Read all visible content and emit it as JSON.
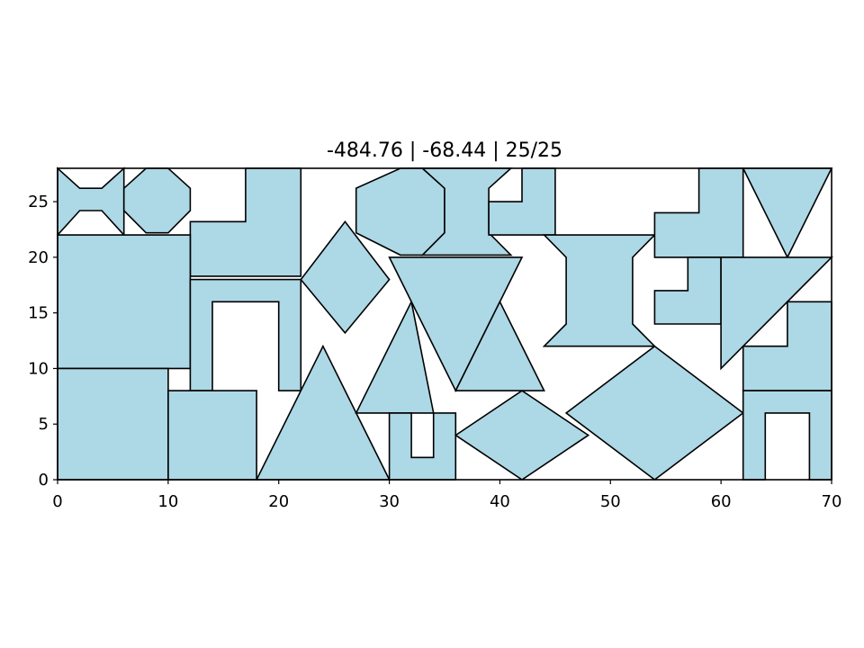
{
  "chart_data": {
    "type": "polygon-packing",
    "title": "-484.76 | -68.44 | 25/25",
    "xlim": [
      0,
      70
    ],
    "ylim": [
      0,
      28
    ],
    "x_ticks": [
      0,
      10,
      20,
      30,
      40,
      50,
      60,
      70
    ],
    "y_ticks": [
      0,
      5,
      10,
      15,
      20,
      25
    ],
    "grid": false,
    "legend": "none",
    "colors": {
      "fill": "#add8e6",
      "edge": "#000000"
    },
    "polygons": [
      {
        "name": "bowtie",
        "points": [
          [
            0,
            22
          ],
          [
            0,
            28
          ],
          [
            2,
            26.2
          ],
          [
            4,
            26.2
          ],
          [
            6,
            28
          ],
          [
            6,
            22
          ],
          [
            4,
            24.2
          ],
          [
            2,
            24.2
          ]
        ]
      },
      {
        "name": "octagon-small",
        "points": [
          [
            8,
            28
          ],
          [
            10,
            28
          ],
          [
            12,
            26.2
          ],
          [
            12,
            24.2
          ],
          [
            10,
            22.2
          ],
          [
            8,
            22.2
          ],
          [
            6,
            24.2
          ],
          [
            6,
            26.2
          ]
        ]
      },
      {
        "name": "l-shape-top",
        "points": [
          [
            17,
            28
          ],
          [
            22,
            28
          ],
          [
            22,
            18.3
          ],
          [
            12,
            18.3
          ],
          [
            12,
            23.2
          ],
          [
            17,
            23.2
          ]
        ]
      },
      {
        "name": "square-left",
        "points": [
          [
            0,
            10
          ],
          [
            12,
            10
          ],
          [
            12,
            22
          ],
          [
            0,
            22
          ]
        ]
      },
      {
        "name": "arch",
        "points": [
          [
            12,
            8
          ],
          [
            14,
            8
          ],
          [
            14,
            16
          ],
          [
            20,
            16
          ],
          [
            20,
            8
          ],
          [
            22,
            8
          ],
          [
            22,
            18
          ],
          [
            12,
            18
          ]
        ]
      },
      {
        "name": "rect-bottom-left",
        "points": [
          [
            0,
            0
          ],
          [
            10,
            0
          ],
          [
            10,
            10
          ],
          [
            0,
            10
          ]
        ]
      },
      {
        "name": "rect-bottom",
        "points": [
          [
            10,
            0
          ],
          [
            18,
            0
          ],
          [
            18,
            8
          ],
          [
            10,
            8
          ]
        ]
      },
      {
        "name": "triangle-bottom",
        "points": [
          [
            18,
            0
          ],
          [
            30,
            0
          ],
          [
            24,
            12
          ]
        ]
      },
      {
        "name": "diamond-small",
        "points": [
          [
            22,
            18
          ],
          [
            26,
            23.2
          ],
          [
            30,
            18
          ],
          [
            26,
            13.2
          ]
        ]
      },
      {
        "name": "octagon-large",
        "points": [
          [
            31,
            28
          ],
          [
            33,
            28
          ],
          [
            35,
            26.2
          ],
          [
            35,
            22.2
          ],
          [
            33,
            20.2
          ],
          [
            31,
            20.2
          ],
          [
            27,
            22.2
          ],
          [
            27,
            26.2
          ]
        ]
      },
      {
        "name": "hourglass-top",
        "points": [
          [
            33,
            28
          ],
          [
            41,
            28
          ],
          [
            39,
            26.2
          ],
          [
            39,
            22.2
          ],
          [
            41,
            20.2
          ],
          [
            33,
            20.2
          ],
          [
            35,
            22.2
          ],
          [
            35,
            26.2
          ]
        ]
      },
      {
        "name": "l-shape-mid-top",
        "points": [
          [
            42,
            28
          ],
          [
            45,
            28
          ],
          [
            45,
            22
          ],
          [
            39,
            22
          ],
          [
            39,
            25
          ],
          [
            42,
            25
          ]
        ]
      },
      {
        "name": "triangle-mid-left",
        "points": [
          [
            27,
            6
          ],
          [
            34,
            6
          ],
          [
            32,
            16
          ]
        ]
      },
      {
        "name": "triangle-inverted",
        "points": [
          [
            30,
            20
          ],
          [
            42,
            20
          ],
          [
            36,
            8
          ]
        ]
      },
      {
        "name": "triangle-mid-right",
        "points": [
          [
            36,
            8
          ],
          [
            44,
            8
          ],
          [
            40,
            16
          ]
        ]
      },
      {
        "name": "arch-small",
        "points": [
          [
            30,
            0
          ],
          [
            36,
            0
          ],
          [
            36,
            6
          ],
          [
            34,
            6
          ],
          [
            34,
            2
          ],
          [
            32,
            2
          ],
          [
            32,
            6
          ],
          [
            30,
            6
          ]
        ]
      },
      {
        "name": "diamond-bottom",
        "points": [
          [
            36,
            4
          ],
          [
            42,
            8
          ],
          [
            48,
            4
          ],
          [
            42,
            0
          ]
        ]
      },
      {
        "name": "hourglass-mid",
        "points": [
          [
            44,
            22
          ],
          [
            54,
            22
          ],
          [
            52,
            20
          ],
          [
            52,
            14
          ],
          [
            54,
            12
          ],
          [
            44,
            12
          ],
          [
            46,
            14
          ],
          [
            46,
            20
          ]
        ]
      },
      {
        "name": "diamond-large",
        "points": [
          [
            46,
            6
          ],
          [
            54,
            12
          ],
          [
            62,
            6
          ],
          [
            54,
            0
          ]
        ]
      },
      {
        "name": "l-shape-right-top",
        "points": [
          [
            58,
            28
          ],
          [
            62,
            28
          ],
          [
            62,
            20
          ],
          [
            54,
            20
          ],
          [
            54,
            24
          ],
          [
            58,
            24
          ]
        ]
      },
      {
        "name": "l-shape-right-mid",
        "points": [
          [
            57,
            20
          ],
          [
            60,
            20
          ],
          [
            60,
            14
          ],
          [
            54,
            14
          ],
          [
            54,
            17
          ],
          [
            57,
            17
          ]
        ]
      },
      {
        "name": "triangle-top-right",
        "points": [
          [
            62,
            28
          ],
          [
            70,
            28
          ],
          [
            66,
            20
          ]
        ]
      },
      {
        "name": "triangle-right",
        "points": [
          [
            60,
            20
          ],
          [
            70,
            20
          ],
          [
            60,
            10
          ]
        ]
      },
      {
        "name": "l-shape-right-bottom",
        "points": [
          [
            66,
            16
          ],
          [
            70,
            16
          ],
          [
            70,
            8
          ],
          [
            62,
            8
          ],
          [
            62,
            12
          ],
          [
            66,
            12
          ]
        ]
      },
      {
        "name": "arch-right",
        "points": [
          [
            62,
            0
          ],
          [
            64,
            0
          ],
          [
            64,
            6
          ],
          [
            68,
            6
          ],
          [
            68,
            0
          ],
          [
            70,
            0
          ],
          [
            70,
            8
          ],
          [
            62,
            8
          ]
        ]
      }
    ]
  }
}
